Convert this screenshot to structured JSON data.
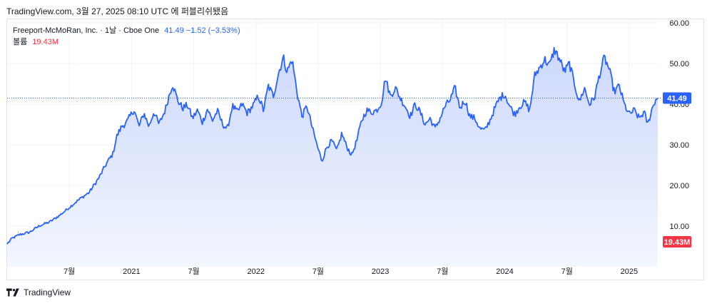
{
  "caption": "TradingView.com, 3월 27, 2025 08:10 UTC 에 퍼블리쉬됐음",
  "legend": {
    "title": "Freeport-McMoRan, Inc. · 1날 · Cboe One",
    "values": "41.49  −1.52 (−3.53%)",
    "volume_label": "볼륨",
    "volume_value": "19.43M"
  },
  "footer": {
    "brand": "TradingView",
    "logo_icon": "tradingview-logo-icon"
  },
  "colors": {
    "line": "#2962ff",
    "area_top": "#cdd9fb",
    "area_bottom": "#f3f6fe",
    "vol_up": "#8fd3c9",
    "vol_down": "#f5a3a3",
    "price_badge": "#2962ff",
    "vol_badge": "#f23645"
  },
  "chart_data": {
    "type": "area",
    "title": "",
    "xlabel": "",
    "ylabel": "",
    "ylim": [
      0,
      60
    ],
    "y_ticks": [
      "60.00",
      "50.00",
      "40.00",
      "30.00",
      "20.00",
      "10.00"
    ],
    "x_ticks": [
      {
        "label": "7월",
        "t": 2020.5
      },
      {
        "label": "2021",
        "t": 2021.0
      },
      {
        "label": "7월",
        "t": 2021.5
      },
      {
        "label": "2022",
        "t": 2022.0
      },
      {
        "label": "7월",
        "t": 2022.5
      },
      {
        "label": "2023",
        "t": 2023.0
      },
      {
        "label": "7월",
        "t": 2023.5
      },
      {
        "label": "2024",
        "t": 2024.0
      },
      {
        "label": "7월",
        "t": 2024.5
      },
      {
        "label": "2025",
        "t": 2025.0
      }
    ],
    "x_range": [
      2020.0,
      2025.23
    ],
    "series": [
      {
        "type": "area",
        "points": [
          [
            2020.0,
            5.6
          ],
          [
            2020.04,
            7.0
          ],
          [
            2020.1,
            7.9
          ],
          [
            2020.18,
            8.5
          ],
          [
            2020.26,
            10.1
          ],
          [
            2020.34,
            11.0
          ],
          [
            2020.42,
            12.6
          ],
          [
            2020.5,
            14.6
          ],
          [
            2020.58,
            16.6
          ],
          [
            2020.66,
            18.3
          ],
          [
            2020.74,
            22.0
          ],
          [
            2020.8,
            25.5
          ],
          [
            2020.85,
            27.8
          ],
          [
            2020.88,
            32.0
          ],
          [
            2020.92,
            34.5
          ],
          [
            2020.96,
            35.5
          ],
          [
            2021.02,
            38.7
          ],
          [
            2021.06,
            34.5
          ],
          [
            2021.1,
            37.8
          ],
          [
            2021.14,
            34.5
          ],
          [
            2021.18,
            38.2
          ],
          [
            2021.22,
            35.0
          ],
          [
            2021.27,
            38.5
          ],
          [
            2021.3,
            42.0
          ],
          [
            2021.33,
            45.0
          ],
          [
            2021.37,
            41.0
          ],
          [
            2021.41,
            39.0
          ],
          [
            2021.45,
            39.8
          ],
          [
            2021.49,
            36.5
          ],
          [
            2021.53,
            38.5
          ],
          [
            2021.57,
            35.5
          ],
          [
            2021.61,
            38.8
          ],
          [
            2021.65,
            36.0
          ],
          [
            2021.69,
            38.3
          ],
          [
            2021.73,
            35.2
          ],
          [
            2021.77,
            33.8
          ],
          [
            2021.81,
            39.6
          ],
          [
            2021.85,
            38.0
          ],
          [
            2021.89,
            40.0
          ],
          [
            2021.93,
            37.8
          ],
          [
            2021.98,
            39.8
          ],
          [
            2022.02,
            42.0
          ],
          [
            2022.06,
            38.5
          ],
          [
            2022.1,
            44.5
          ],
          [
            2022.14,
            42.0
          ],
          [
            2022.18,
            47.5
          ],
          [
            2022.22,
            51.5
          ],
          [
            2022.25,
            48.0
          ],
          [
            2022.29,
            51.0
          ],
          [
            2022.33,
            43.0
          ],
          [
            2022.37,
            37.0
          ],
          [
            2022.41,
            39.5
          ],
          [
            2022.45,
            34.5
          ],
          [
            2022.49,
            30.0
          ],
          [
            2022.53,
            26.0
          ],
          [
            2022.57,
            29.5
          ],
          [
            2022.61,
            31.0
          ],
          [
            2022.65,
            28.5
          ],
          [
            2022.69,
            32.8
          ],
          [
            2022.73,
            29.5
          ],
          [
            2022.77,
            27.5
          ],
          [
            2022.81,
            31.0
          ],
          [
            2022.85,
            36.0
          ],
          [
            2022.89,
            38.5
          ],
          [
            2022.93,
            38.0
          ],
          [
            2022.97,
            38.5
          ],
          [
            2023.01,
            40.5
          ],
          [
            2023.04,
            46.5
          ],
          [
            2023.08,
            42.0
          ],
          [
            2023.12,
            44.0
          ],
          [
            2023.16,
            41.5
          ],
          [
            2023.2,
            39.5
          ],
          [
            2023.24,
            37.0
          ],
          [
            2023.28,
            40.0
          ],
          [
            2023.32,
            38.0
          ],
          [
            2023.36,
            35.0
          ],
          [
            2023.4,
            36.5
          ],
          [
            2023.44,
            34.0
          ],
          [
            2023.48,
            36.5
          ],
          [
            2023.52,
            39.5
          ],
          [
            2023.56,
            41.0
          ],
          [
            2023.6,
            44.0
          ],
          [
            2023.64,
            39.0
          ],
          [
            2023.68,
            41.0
          ],
          [
            2023.72,
            37.0
          ],
          [
            2023.76,
            36.5
          ],
          [
            2023.8,
            34.0
          ],
          [
            2023.84,
            33.5
          ],
          [
            2023.88,
            36.0
          ],
          [
            2023.92,
            39.0
          ],
          [
            2023.96,
            41.5
          ],
          [
            2024.0,
            42.5
          ],
          [
            2024.04,
            39.5
          ],
          [
            2024.08,
            37.5
          ],
          [
            2024.12,
            39.5
          ],
          [
            2024.16,
            40.5
          ],
          [
            2024.2,
            38.5
          ],
          [
            2024.24,
            47.0
          ],
          [
            2024.28,
            49.0
          ],
          [
            2024.32,
            51.0
          ],
          [
            2024.36,
            49.5
          ],
          [
            2024.4,
            53.5
          ],
          [
            2024.44,
            51.0
          ],
          [
            2024.48,
            48.0
          ],
          [
            2024.52,
            50.0
          ],
          [
            2024.56,
            45.0
          ],
          [
            2024.6,
            40.5
          ],
          [
            2024.64,
            44.0
          ],
          [
            2024.68,
            40.0
          ],
          [
            2024.72,
            41.5
          ],
          [
            2024.76,
            47.0
          ],
          [
            2024.8,
            51.5
          ],
          [
            2024.84,
            48.5
          ],
          [
            2024.88,
            43.0
          ],
          [
            2024.92,
            44.5
          ],
          [
            2024.96,
            40.0
          ],
          [
            2025.0,
            37.5
          ],
          [
            2025.04,
            38.5
          ],
          [
            2025.08,
            36.5
          ],
          [
            2025.12,
            38.0
          ],
          [
            2025.15,
            35.0
          ],
          [
            2025.18,
            38.5
          ],
          [
            2025.21,
            41.0
          ],
          [
            2025.23,
            41.49
          ]
        ]
      }
    ],
    "last_price": 41.49,
    "last_price_label": "41.49",
    "volume_last_label": "19.43M"
  }
}
